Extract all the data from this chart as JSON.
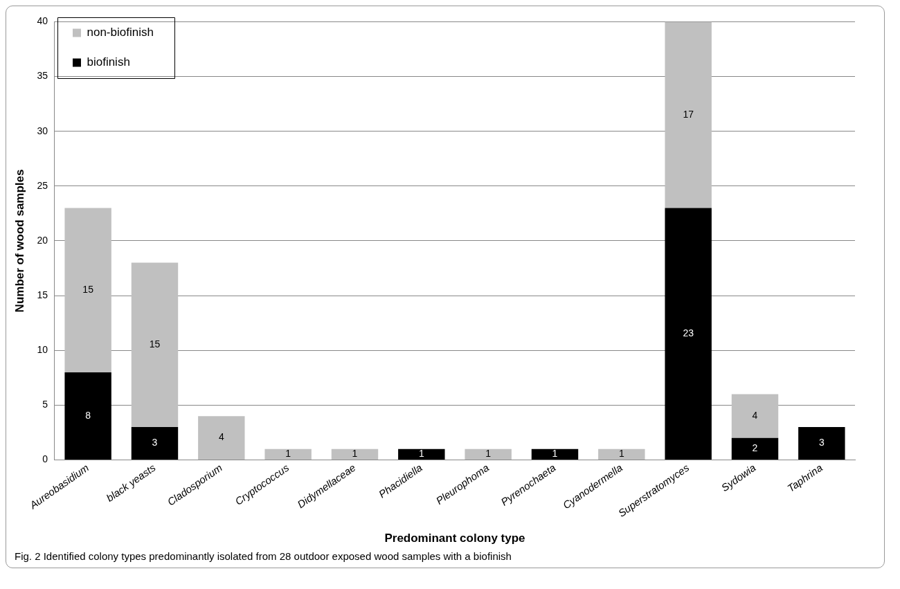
{
  "chart_data": {
    "type": "bar",
    "stacked": true,
    "xlabel": "Predominant colony type",
    "ylabel": "Number of wood samples",
    "categories": [
      "Aureobasidium",
      "black yeasts",
      "Cladosporium",
      "Cryptococcus",
      "Didymellaceae",
      "Phacidiella",
      "Pleurophoma",
      "Pyrenochaeta",
      "Cyanodermella",
      "Superstratomyces",
      "Sydowia",
      "Taphrina"
    ],
    "series": [
      {
        "name": "biofinish",
        "color": "#000000",
        "values": [
          8,
          3,
          null,
          null,
          null,
          1,
          null,
          1,
          null,
          23,
          2,
          3
        ]
      },
      {
        "name": "non-biofinish",
        "color": "#c0c0c0",
        "values": [
          15,
          15,
          4,
          1,
          1,
          null,
          1,
          null,
          1,
          17,
          4,
          null
        ]
      }
    ],
    "ylim": [
      0,
      40
    ],
    "yticks": [
      0,
      5,
      10,
      15,
      20,
      25,
      30,
      35,
      40
    ],
    "grid": "y",
    "legend": "top left",
    "data_labels": true,
    "annotations": [
      "Fig. 2 Identified colony types predominantly isolated from 28 outdoor exposed wood samples with a biofinish"
    ]
  }
}
